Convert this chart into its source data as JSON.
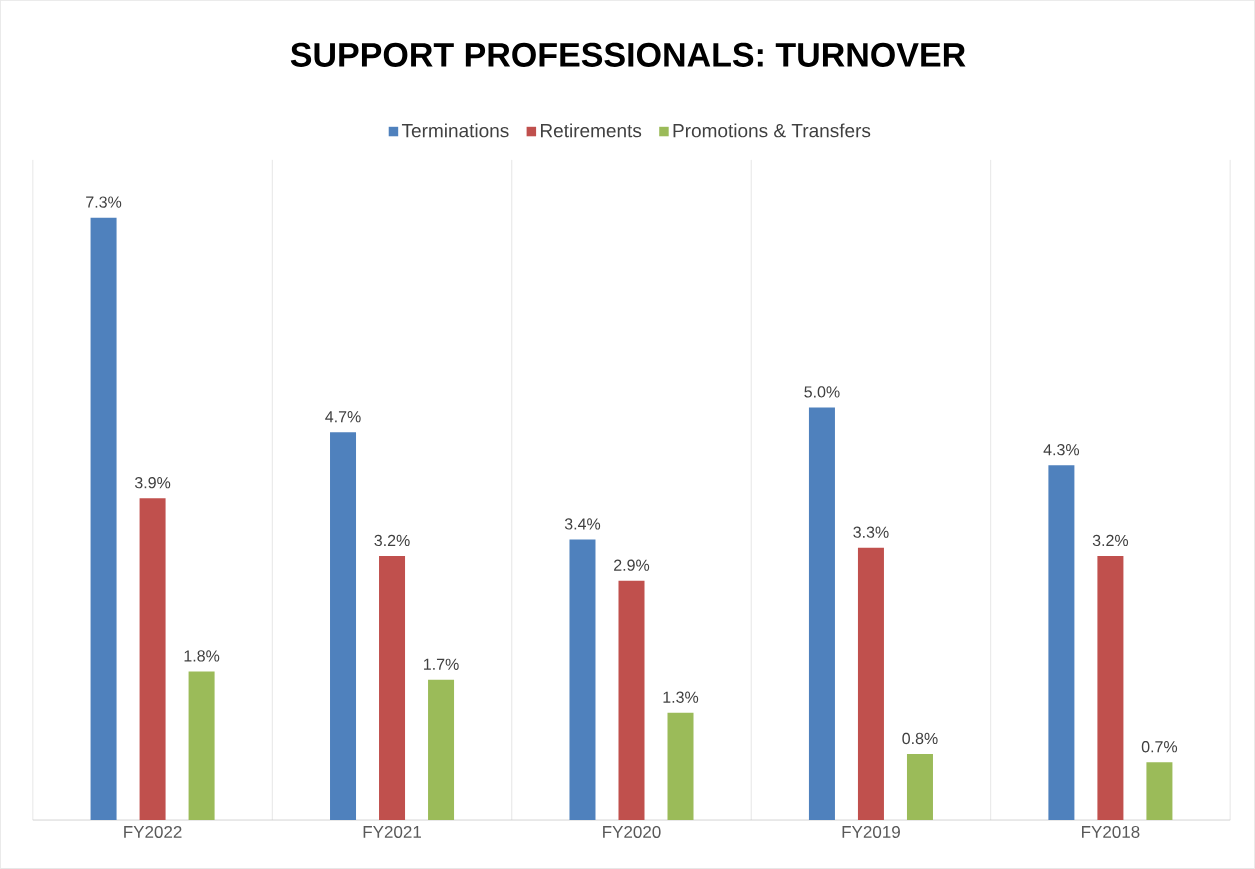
{
  "chart_data": {
    "type": "bar",
    "title": "SUPPORT PROFESSIONALS: TURNOVER",
    "categories": [
      "FY2022",
      "FY2021",
      "FY2020",
      "FY2019",
      "FY2018"
    ],
    "series": [
      {
        "name": "Terminations",
        "color": "#4f81bd",
        "values": [
          7.3,
          4.7,
          3.4,
          5.0,
          4.3
        ],
        "value_labels": [
          "7.3%",
          "4.7%",
          "3.4%",
          "5.0%",
          "4.3%"
        ]
      },
      {
        "name": "Retirements",
        "color": "#c0504d",
        "values": [
          3.9,
          3.2,
          2.9,
          3.3,
          3.2
        ],
        "value_labels": [
          "3.9%",
          "3.2%",
          "2.9%",
          "3.3%",
          "3.2%"
        ]
      },
      {
        "name": "Promotions & Transfers",
        "color": "#9bbb59",
        "values": [
          1.8,
          1.7,
          1.3,
          0.8,
          0.7
        ],
        "value_labels": [
          "1.8%",
          "1.7%",
          "1.3%",
          "0.8%",
          "0.7%"
        ]
      }
    ],
    "ylim": [
      0,
      8
    ],
    "grid": "x",
    "legend": "top",
    "tick_labels": "x"
  }
}
